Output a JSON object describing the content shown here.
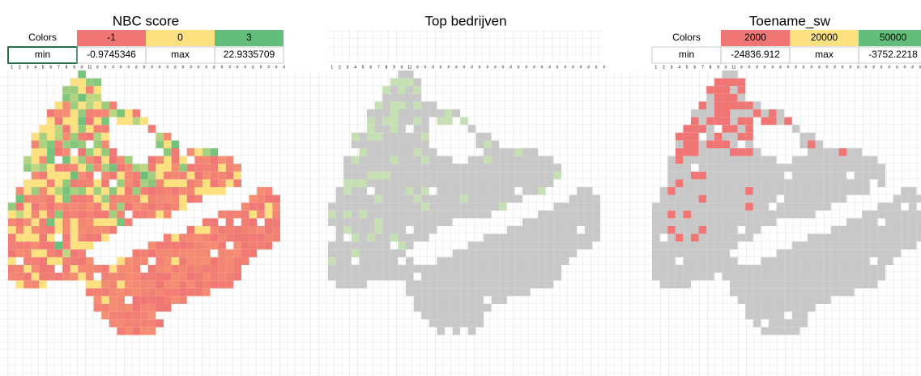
{
  "column_headers": [
    "1",
    "2",
    "3",
    "4",
    "5",
    "6",
    "7",
    "8",
    "9",
    "#",
    "11",
    "#",
    "#",
    "#",
    "#",
    "#",
    "#",
    "#",
    "#",
    "#",
    "#",
    "#",
    "#",
    "#",
    "#",
    "#",
    "#",
    "#",
    "#",
    "#",
    "#",
    "#",
    "#",
    "#",
    "#",
    "#"
  ],
  "panels": [
    {
      "title": "NBC score",
      "colors_label": "Colors",
      "colors": [
        -1,
        0,
        3
      ],
      "min_label": "min",
      "min": -0.9745346,
      "max_label": "max",
      "max": 22.9335709
    },
    {
      "title": "Top bedrijven"
    },
    {
      "title": "Toename_sw",
      "colors_label": "Colors",
      "colors": [
        2000,
        20000,
        50000
      ],
      "min_label": "min",
      "min": -24836.912,
      "max_label": "max",
      "max": -3752.2218
    }
  ]
}
